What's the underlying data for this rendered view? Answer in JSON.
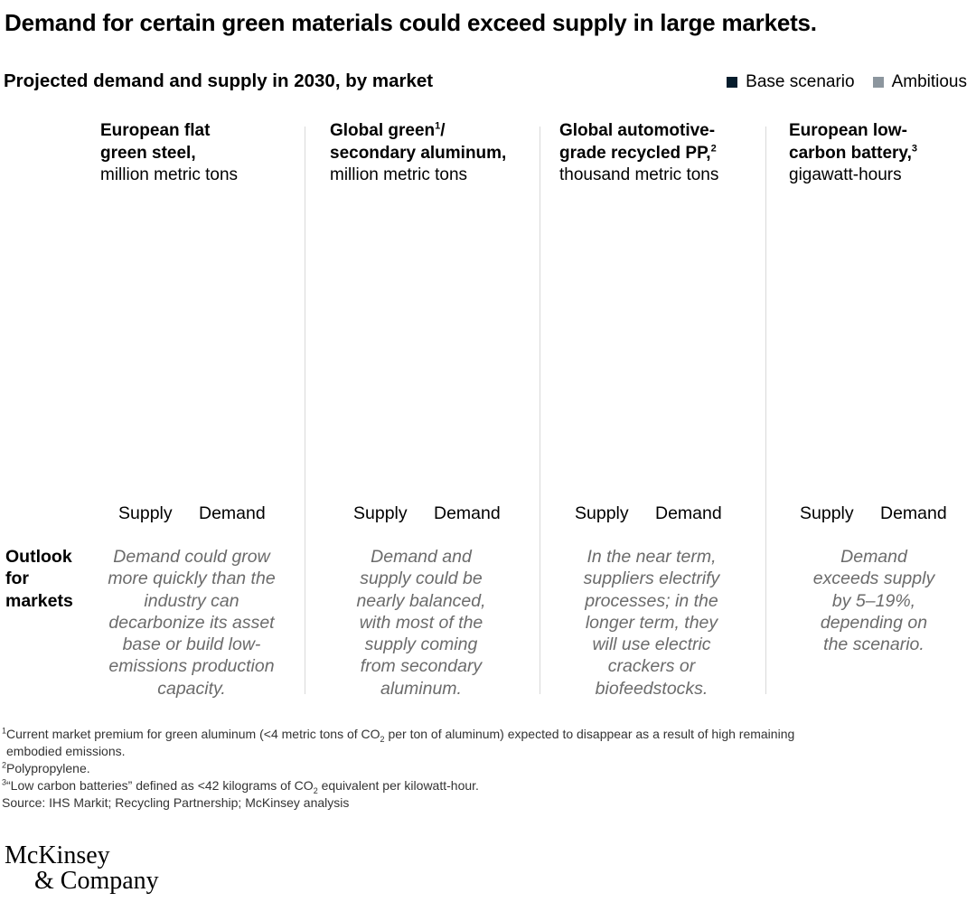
{
  "title": "Demand for certain green materials could exceed supply in large markets.",
  "subtitle": "Projected demand and supply in 2030, by market",
  "legend": [
    {
      "label": "Base scenario",
      "color": "#051c2c"
    },
    {
      "label": "Ambitious",
      "color": "#8c969e"
    }
  ],
  "chart_data": {
    "type": "bar",
    "title": "Projected demand and supply in 2030, by market",
    "categories": [
      "Supply",
      "Demand"
    ],
    "series": [
      {
        "name": "Base scenario",
        "color": "#051c2c"
      },
      {
        "name": "Ambitious",
        "color": "#8c969e"
      }
    ],
    "markets": [
      {
        "name": "European flat green steel,",
        "sup": "",
        "unit": "million metric tons",
        "supply_label": "Supply",
        "demand_label": "Demand",
        "outlook": "Demand could grow more quickly than the industry can decarbonize its asset base or build low-emissions production capacity."
      },
      {
        "name": "Global green",
        "sup": "1",
        "name2": "/ secondary aluminum,",
        "unit": "million metric tons",
        "supply_label": "Supply",
        "demand_label": "Demand",
        "outlook": "Demand and supply could be nearly balanced, with most of the supply coming from secondary aluminum."
      },
      {
        "name": "Global automotive-grade recycled PP,",
        "sup": "2",
        "unit": "thousand metric tons",
        "supply_label": "Supply",
        "demand_label": "Demand",
        "outlook": "In the near term, suppliers electrify processes; in the longer term, they will use electric crackers or biofeedstocks."
      },
      {
        "name": "European low-carbon battery,",
        "sup": "3",
        "unit": "gigawatt-hours",
        "supply_label": "Supply",
        "demand_label": "Demand",
        "outlook": "Demand exceeds supply by 5–19%, depending on the scenario."
      }
    ]
  },
  "outlook_label": "Outlook for markets",
  "footnotes": {
    "fn1_sup": "1",
    "fn1_a": "Current market premium for green aluminum (<4 metric tons of CO",
    "fn1_sub": "2",
    "fn1_b": " per ton of aluminum) expected to disappear as a result of high remaining",
    "fn1_c": "embodied emissions.",
    "fn2_sup": "2",
    "fn2": "Polypropylene.",
    "fn3_sup": "3",
    "fn3_a": "“Low carbon batteries” defined as <42 kilograms of CO",
    "fn3_sub": "2",
    "fn3_b": " equivalent per kilowatt-hour.",
    "source": "Source: IHS Markit; Recycling Partnership; McKinsey analysis"
  },
  "logo": {
    "line1": "McKinsey",
    "line2": "& Company"
  }
}
